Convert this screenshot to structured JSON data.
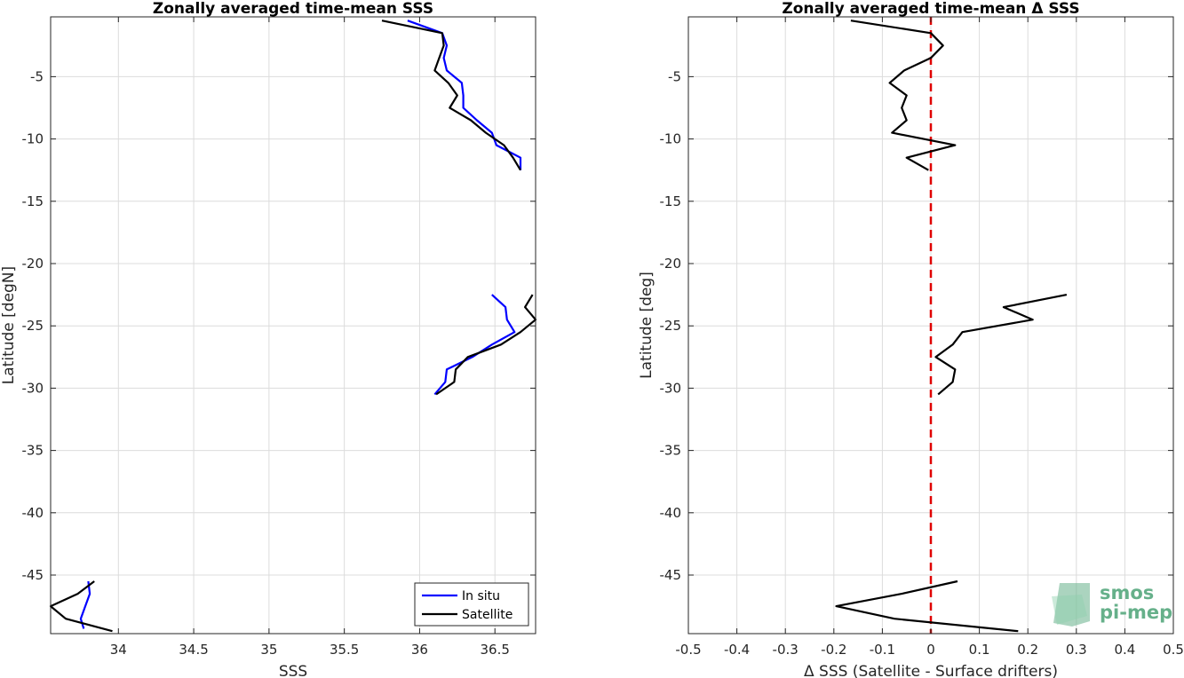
{
  "chart_data": [
    {
      "type": "line",
      "title": "Zonally averaged time-mean SSS",
      "xlabel": "SSS",
      "ylabel": "Latitude [degN]",
      "xlim": [
        33.55,
        36.77
      ],
      "ylim": [
        -49.7,
        -0.2
      ],
      "xticks": [
        34,
        34.5,
        35,
        35.5,
        36,
        36.5
      ],
      "xtick_labels": [
        "34",
        "34.5",
        "35",
        "35.5",
        "36",
        "36.5"
      ],
      "yticks": [
        -5,
        -10,
        -15,
        -20,
        -25,
        -30,
        -35,
        -40,
        -45
      ],
      "ytick_labels": [
        "-5",
        "-10",
        "-15",
        "-20",
        "-25",
        "-30",
        "-35",
        "-40",
        "-45"
      ],
      "grid": true,
      "legend_position": "bottom-right",
      "series": [
        {
          "name": "In situ",
          "color": "#0000ff",
          "segments": [
            [
              [
                35.92,
                -0.5
              ],
              [
                36.15,
                -1.5
              ],
              [
                36.18,
                -2.5
              ],
              [
                36.16,
                -3.5
              ],
              [
                36.18,
                -4.5
              ],
              [
                36.28,
                -5.5
              ],
              [
                36.29,
                -6.5
              ],
              [
                36.29,
                -7.5
              ],
              [
                36.38,
                -8.5
              ],
              [
                36.48,
                -9.5
              ],
              [
                36.51,
                -10.5
              ],
              [
                36.59,
                -11.0
              ],
              [
                36.67,
                -11.5
              ],
              [
                36.67,
                -12.5
              ]
            ],
            [
              [
                36.48,
                -22.5
              ],
              [
                36.57,
                -23.5
              ],
              [
                36.58,
                -24.5
              ],
              [
                36.63,
                -25.5
              ],
              [
                36.48,
                -26.5
              ],
              [
                36.35,
                -27.5
              ],
              [
                36.18,
                -28.5
              ],
              [
                36.17,
                -29.5
              ],
              [
                36.1,
                -30.5
              ]
            ],
            [
              [
                33.8,
                -45.5
              ],
              [
                33.81,
                -46.5
              ],
              [
                33.78,
                -47.5
              ],
              [
                33.75,
                -48.5
              ],
              [
                33.77,
                -49.3
              ]
            ]
          ]
        },
        {
          "name": "Satellite",
          "color": "#000000",
          "segments": [
            [
              [
                35.75,
                -0.5
              ],
              [
                36.15,
                -1.5
              ],
              [
                36.16,
                -2.5
              ],
              [
                36.13,
                -3.5
              ],
              [
                36.1,
                -4.5
              ],
              [
                36.19,
                -5.5
              ],
              [
                36.25,
                -6.5
              ],
              [
                36.2,
                -7.5
              ],
              [
                36.34,
                -8.5
              ],
              [
                36.44,
                -9.5
              ],
              [
                36.56,
                -10.5
              ],
              [
                36.62,
                -11.5
              ],
              [
                36.67,
                -12.5
              ]
            ],
            [
              [
                36.75,
                -22.5
              ],
              [
                36.7,
                -23.5
              ],
              [
                36.77,
                -24.5
              ],
              [
                36.67,
                -25.5
              ],
              [
                36.54,
                -26.5
              ],
              [
                36.32,
                -27.5
              ],
              [
                36.24,
                -28.5
              ],
              [
                36.23,
                -29.5
              ],
              [
                36.11,
                -30.5
              ]
            ],
            [
              [
                33.84,
                -45.5
              ],
              [
                33.73,
                -46.5
              ],
              [
                33.55,
                -47.5
              ],
              [
                33.65,
                -48.5
              ],
              [
                33.96,
                -49.5
              ]
            ]
          ]
        }
      ]
    },
    {
      "type": "line",
      "title": "Zonally averaged time-mean Δ SSS",
      "xlabel": "Δ SSS (Satellite - Surface drifters)",
      "ylabel": "Latitude [deg]",
      "xlim": [
        -0.5,
        0.5
      ],
      "ylim": [
        -49.7,
        -0.2
      ],
      "xticks": [
        -0.5,
        -0.4,
        -0.3,
        -0.2,
        -0.1,
        0,
        0.1,
        0.2,
        0.3,
        0.4,
        0.5
      ],
      "xtick_labels": [
        "-0.5",
        "-0.4",
        "-0.3",
        "-0.2",
        "-0.1",
        "0",
        "0.1",
        "0.2",
        "0.3",
        "0.4",
        "0.5"
      ],
      "yticks": [
        -5,
        -10,
        -15,
        -20,
        -25,
        -30,
        -35,
        -40,
        -45
      ],
      "ytick_labels": [
        "-5",
        "-10",
        "-15",
        "-20",
        "-25",
        "-30",
        "-35",
        "-40",
        "-45"
      ],
      "grid": true,
      "reference_line": {
        "x": 0,
        "color": "#e00000",
        "style": "dashed"
      },
      "series": [
        {
          "color": "#000000",
          "segments": [
            [
              [
                -0.165,
                -0.5
              ],
              [
                0.0,
                -1.5
              ],
              [
                0.025,
                -2.5
              ],
              [
                0.0,
                -3.5
              ],
              [
                -0.055,
                -4.5
              ],
              [
                -0.085,
                -5.5
              ],
              [
                -0.05,
                -6.5
              ],
              [
                -0.06,
                -7.5
              ],
              [
                -0.05,
                -8.5
              ],
              [
                -0.08,
                -9.5
              ],
              [
                0.05,
                -10.5
              ],
              [
                -0.05,
                -11.5
              ],
              [
                -0.005,
                -12.5
              ]
            ],
            [
              [
                0.28,
                -22.5
              ],
              [
                0.15,
                -23.5
              ],
              [
                0.21,
                -24.5
              ],
              [
                0.065,
                -25.5
              ],
              [
                0.045,
                -26.5
              ],
              [
                0.01,
                -27.5
              ],
              [
                0.05,
                -28.5
              ],
              [
                0.045,
                -29.5
              ],
              [
                0.015,
                -30.5
              ]
            ],
            [
              [
                0.055,
                -45.5
              ],
              [
                -0.06,
                -46.5
              ],
              [
                -0.195,
                -47.5
              ],
              [
                -0.075,
                -48.5
              ],
              [
                0.18,
                -49.5
              ]
            ]
          ]
        }
      ]
    }
  ],
  "logo": {
    "line1": "smos",
    "line2": "pi-mep"
  },
  "colors": {
    "grid": "#dcdcdc",
    "axis": "#262626",
    "logo": "#66b08a"
  }
}
